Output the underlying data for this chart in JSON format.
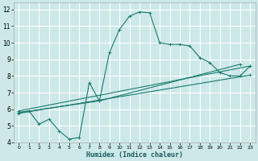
{
  "xlabel": "Humidex (Indice chaleur)",
  "xlim": [
    -0.5,
    23.5
  ],
  "ylim": [
    4,
    12.4
  ],
  "xticks": [
    0,
    1,
    2,
    3,
    4,
    5,
    6,
    7,
    8,
    9,
    10,
    11,
    12,
    13,
    14,
    15,
    16,
    17,
    18,
    19,
    20,
    21,
    22,
    23
  ],
  "yticks": [
    4,
    5,
    6,
    7,
    8,
    9,
    10,
    11,
    12
  ],
  "bg_color": "#cce8e8",
  "grid_color": "#ffffff",
  "line_color": "#1a7a6e",
  "line1_x": [
    0,
    1,
    2,
    3,
    4,
    5,
    6,
    7,
    8,
    9,
    10,
    11,
    12,
    13,
    14,
    15,
    16,
    17,
    18,
    19,
    20,
    21,
    22,
    23
  ],
  "line1_y": [
    5.8,
    5.9,
    5.1,
    5.4,
    4.7,
    4.2,
    4.3,
    7.6,
    6.5,
    9.4,
    10.8,
    11.6,
    11.85,
    11.8,
    10.0,
    9.9,
    9.9,
    9.8,
    9.1,
    8.8,
    8.2,
    8.0,
    8.0,
    8.6
  ],
  "line2_x": [
    0,
    8,
    22
  ],
  "line2_y": [
    5.8,
    6.5,
    8.7
  ],
  "line3_x": [
    0,
    23
  ],
  "line3_y": [
    5.9,
    8.6
  ],
  "line4_x": [
    0,
    23
  ],
  "line4_y": [
    5.75,
    8.05
  ]
}
